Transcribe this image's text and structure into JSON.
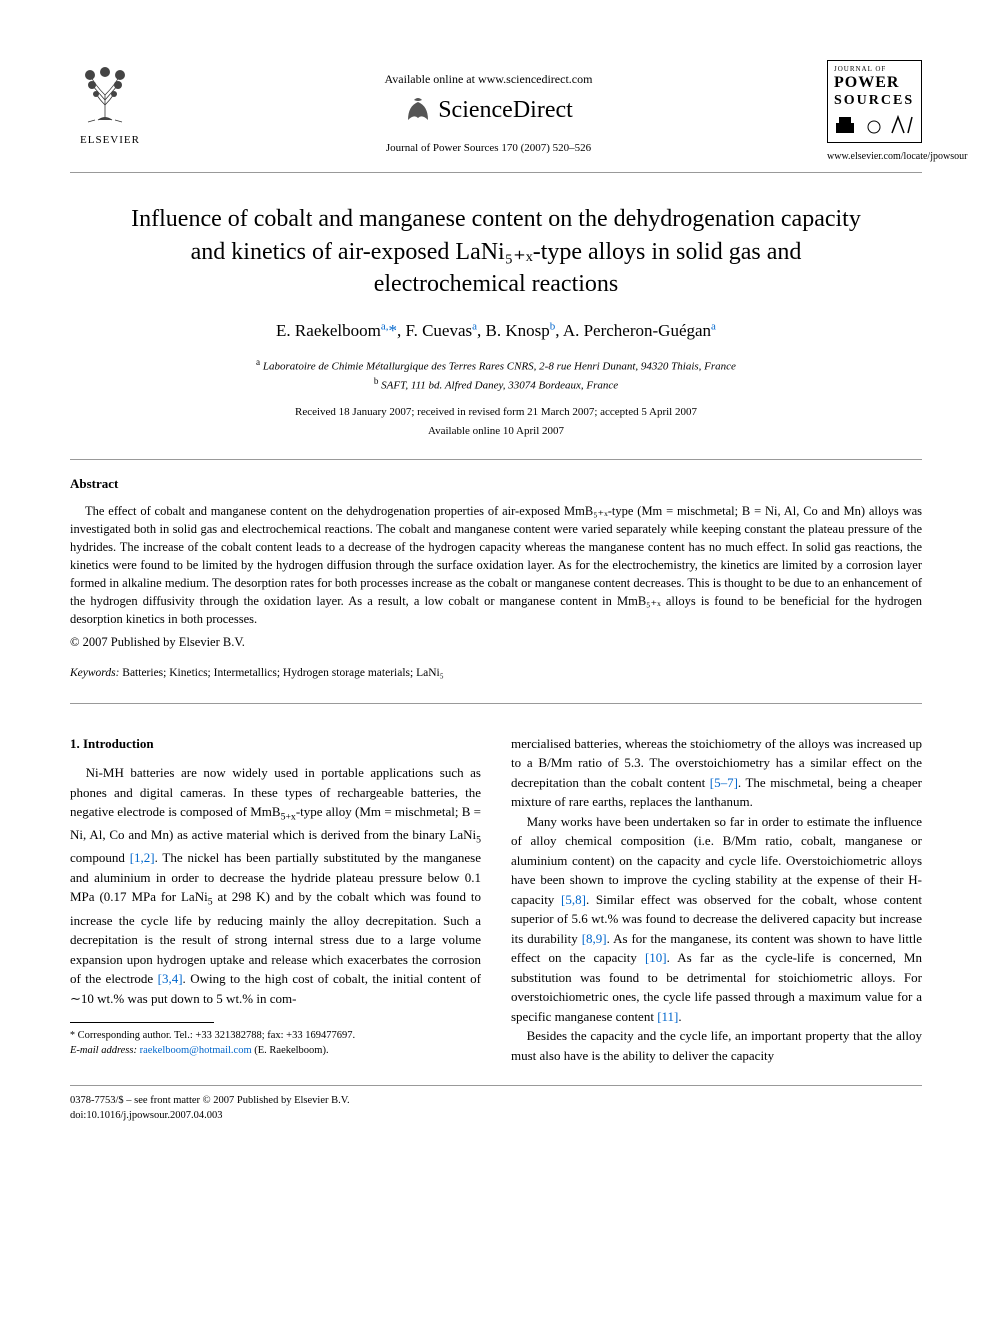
{
  "header": {
    "elsevier_label": "ELSEVIER",
    "available_online": "Available online at www.sciencedirect.com",
    "sciencedirect": "ScienceDirect",
    "journal_ref": "Journal of Power Sources 170 (2007) 520–526",
    "journal_logo": {
      "line1": "JOURNAL OF",
      "line2": "POWER",
      "line3": "SOURCES"
    },
    "journal_url": "www.elsevier.com/locate/jpowsour"
  },
  "title": "Influence of cobalt and manganese content on the dehydrogenation capacity and kinetics of air-exposed LaNi₅₊ₓ-type alloys in solid gas and electrochemical reactions",
  "authors_html": "E. Raekelboom<sup>a,</sup><span class='star'>*</span>, F. Cuevas<sup>a</sup>, B. Knosp<sup>b</sup>, A. Percheron-Guégan<sup>a</sup>",
  "affiliations": {
    "a": "Laboratoire de Chimie Métallurgique des Terres Rares CNRS, 2-8 rue Henri Dunant, 94320 Thiais, France",
    "b": "SAFT, 111 bd. Alfred Daney, 33074 Bordeaux, France"
  },
  "dates": {
    "received": "Received 18 January 2007; received in revised form 21 March 2007; accepted 5 April 2007",
    "available": "Available online 10 April 2007"
  },
  "abstract": {
    "heading": "Abstract",
    "text": "The effect of cobalt and manganese content on the dehydrogenation properties of air-exposed MmB₅₊ₓ-type (Mm = mischmetal; B = Ni, Al, Co and Mn) alloys was investigated both in solid gas and electrochemical reactions. The cobalt and manganese content were varied separately while keeping constant the plateau pressure of the hydrides. The increase of the cobalt content leads to a decrease of the hydrogen capacity whereas the manganese content has no much effect. In solid gas reactions, the kinetics were found to be limited by the hydrogen diffusion through the surface oxidation layer. As for the electrochemistry, the kinetics are limited by a corrosion layer formed in alkaline medium. The desorption rates for both processes increase as the cobalt or manganese content decreases. This is thought to be due to an enhancement of the hydrogen diffusivity through the oxidation layer. As a result, a low cobalt or manganese content in MmB₅₊ₓ alloys is found to be beneficial for the hydrogen desorption kinetics in both processes.",
    "copyright": "© 2007 Published by Elsevier B.V."
  },
  "keywords": {
    "label": "Keywords:",
    "text": "Batteries; Kinetics; Intermetallics; Hydrogen storage materials; LaNi₅"
  },
  "intro": {
    "heading": "1.  Introduction",
    "col1_p1_html": "Ni-MH batteries are now widely used in portable applications such as phones and digital cameras. In these types of rechargeable batteries, the negative electrode is composed of MmB<sub>5+x</sub>-type alloy (Mm = mischmetal; B = Ni, Al, Co and Mn) as active material which is derived from the binary LaNi<sub>5</sub> compound <span class='cite'>[1,2]</span>. The nickel has been partially substituted by the manganese and aluminium in order to decrease the hydride plateau pressure below 0.1 MPa (0.17 MPa for LaNi<sub>5</sub> at 298 K) and by the cobalt which was found to increase the cycle life by reducing mainly the alloy decrepitation. Such a decrepitation is the result of strong internal stress due to a large volume expansion upon hydrogen uptake and release which exacerbates the corrosion of the electrode <span class='cite'>[3,4]</span>. Owing to the high cost of cobalt, the initial content of ∼10 wt.% was put down to 5 wt.% in com-",
    "col2_p1_html": "mercialised batteries, whereas the stoichiometry of the alloys was increased up to a B/Mm ratio of 5.3. The overstoichiometry has a similar effect on the decrepitation than the cobalt content <span class='cite'>[5–7]</span>. The mischmetal, being a cheaper mixture of rare earths, replaces the lanthanum.",
    "col2_p2_html": "Many works have been undertaken so far in order to estimate the influence of alloy chemical composition (i.e. B/Mm ratio, cobalt, manganese or aluminium content) on the capacity and cycle life. Overstoichiometric alloys have been shown to improve the cycling stability at the expense of their H-capacity <span class='cite'>[5,8]</span>. Similar effect was observed for the cobalt, whose content superior of 5.6 wt.% was found to decrease the delivered capacity but increase its durability <span class='cite'>[8,9]</span>. As for the manganese, its content was shown to have little effect on the capacity <span class='cite'>[10]</span>. As far as the cycle-life is concerned, Mn substitution was found to be detrimental for stoichiometric alloys. For overstoichiometric ones, the cycle life passed through a maximum value for a specific manganese content <span class='cite'>[11]</span>.",
    "col2_p3_html": "Besides the capacity and the cycle life, an important property that the alloy must also have is the ability to deliver the capacity"
  },
  "footnote": {
    "corr": "Corresponding author. Tel.: +33 321382788; fax: +33 169477697.",
    "email_label": "E-mail address:",
    "email": "raekelboom@hotmail.com",
    "email_attr": "(E. Raekelboom)."
  },
  "footer": {
    "line1": "0378-7753/$ – see front matter © 2007 Published by Elsevier B.V.",
    "line2": "doi:10.1016/j.jpowsour.2007.04.003"
  },
  "colors": {
    "link": "#0066cc",
    "text": "#000000",
    "divider": "#999999"
  }
}
